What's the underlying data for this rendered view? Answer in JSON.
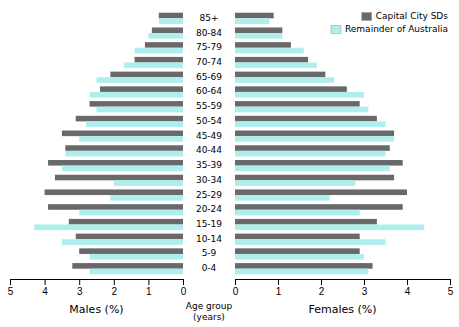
{
  "chart_data": [
    {
      "type": "bar",
      "orientation": "horizontal",
      "categories": [
        "0-4",
        "5-9",
        "10-14",
        "15-19",
        "20-24",
        "25-29",
        "30-34",
        "35-39",
        "40-44",
        "45-49",
        "50-54",
        "55-59",
        "60-64",
        "65-69",
        "70-74",
        "75-79",
        "80-84",
        "85+"
      ],
      "x_label": "Males (%)",
      "y_label": "Age group\n(years)",
      "xlim": [
        5,
        0
      ],
      "xticks": [
        0,
        1,
        2,
        3,
        4,
        5
      ],
      "series": [
        {
          "name": "Capital City SDs",
          "color": "#696969",
          "values": [
            3.2,
            3.0,
            3.1,
            3.3,
            3.9,
            4.0,
            3.7,
            3.9,
            3.4,
            3.5,
            3.1,
            2.7,
            2.4,
            2.1,
            1.4,
            1.1,
            0.9,
            0.7
          ]
        },
        {
          "name": "Remainder of Australia",
          "color": "#aeeeed",
          "values": [
            2.7,
            2.7,
            3.5,
            4.3,
            3.0,
            2.1,
            2.0,
            3.5,
            3.4,
            3.0,
            2.8,
            2.5,
            2.7,
            2.5,
            1.7,
            1.4,
            1.0,
            0.7
          ]
        }
      ]
    },
    {
      "type": "bar",
      "orientation": "horizontal",
      "categories": [
        "0-4",
        "5-9",
        "10-14",
        "15-19",
        "20-24",
        "25-29",
        "30-34",
        "35-39",
        "40-44",
        "45-49",
        "50-54",
        "55-59",
        "60-64",
        "65-69",
        "70-74",
        "75-79",
        "80-84",
        "85+"
      ],
      "x_label": "Females (%)",
      "xlim": [
        0,
        5
      ],
      "xticks": [
        0,
        1,
        2,
        3,
        4,
        5
      ],
      "legend": "upper right",
      "series": [
        {
          "name": "Capital City SDs",
          "color": "#696969",
          "values": [
            3.2,
            2.9,
            2.9,
            3.3,
            3.9,
            4.0,
            3.7,
            3.9,
            3.6,
            3.7,
            3.3,
            2.9,
            2.6,
            2.1,
            1.7,
            1.3,
            1.1,
            0.9
          ]
        },
        {
          "name": "Remainder of Australia",
          "color": "#aeeeed",
          "values": [
            3.1,
            3.0,
            3.5,
            4.4,
            2.9,
            2.2,
            2.8,
            3.6,
            3.5,
            3.7,
            3.5,
            3.1,
            3.0,
            2.3,
            1.9,
            1.6,
            1.1,
            0.8
          ]
        }
      ]
    }
  ]
}
